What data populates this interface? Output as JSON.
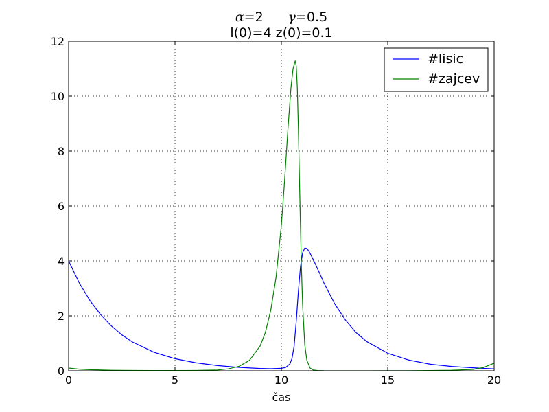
{
  "chart_data": {
    "type": "line",
    "title_line1": {
      "alpha_sym": "α",
      "alpha_eq": "=2",
      "gamma_sym": "γ",
      "gamma_eq": "=0.5"
    },
    "title_line2": "l(0)=4  z(0)=0.1",
    "xlabel": "čas",
    "ylabel": "",
    "xlim": [
      0,
      20
    ],
    "ylim": [
      0,
      12
    ],
    "xticks": [
      "0",
      "5",
      "10",
      "15",
      "20"
    ],
    "yticks": [
      "0",
      "2",
      "4",
      "6",
      "8",
      "10",
      "12"
    ],
    "grid": true,
    "legend_position": "top-right",
    "series": [
      {
        "name": "#lisic",
        "color": "#0000ff",
        "x": [
          0,
          0.5,
          1,
          1.5,
          2,
          2.5,
          3,
          4,
          5,
          6,
          7,
          8,
          9,
          9.5,
          10,
          10.2,
          10.4,
          10.5,
          10.6,
          10.7,
          10.8,
          10.9,
          11.0,
          11.1,
          11.2,
          11.3,
          11.5,
          11.8,
          12,
          12.5,
          13,
          13.5,
          14,
          15,
          16,
          17,
          18,
          19,
          20
        ],
        "y": [
          4.0,
          3.2,
          2.56,
          2.05,
          1.64,
          1.31,
          1.05,
          0.68,
          0.44,
          0.29,
          0.19,
          0.125,
          0.085,
          0.075,
          0.09,
          0.12,
          0.25,
          0.45,
          0.9,
          1.8,
          2.9,
          3.8,
          4.3,
          4.47,
          4.45,
          4.35,
          4.05,
          3.55,
          3.2,
          2.45,
          1.86,
          1.4,
          1.07,
          0.64,
          0.39,
          0.24,
          0.16,
          0.11,
          0.07
        ]
      },
      {
        "name": "#zajcev",
        "color": "#008000",
        "x": [
          0,
          0.5,
          1,
          2,
          3,
          4,
          5,
          6,
          7,
          7.5,
          8,
          8.5,
          9,
          9.25,
          9.5,
          9.75,
          10.0,
          10.15,
          10.3,
          10.45,
          10.55,
          10.65,
          10.7,
          10.75,
          10.8,
          10.85,
          10.9,
          10.95,
          11.0,
          11.1,
          11.2,
          11.35,
          11.5,
          11.7,
          12,
          13,
          14,
          15,
          16,
          17,
          18,
          19,
          19.5,
          20
        ],
        "y": [
          0.1,
          0.06,
          0.04,
          0.02,
          0.012,
          0.01,
          0.01,
          0.012,
          0.03,
          0.07,
          0.16,
          0.38,
          0.9,
          1.4,
          2.2,
          3.4,
          5.3,
          6.9,
          8.7,
          10.3,
          11.0,
          11.28,
          11.1,
          10.3,
          8.8,
          7.0,
          5.2,
          3.6,
          2.4,
          0.95,
          0.38,
          0.1,
          0.03,
          0.01,
          0.004,
          0.002,
          0.002,
          0.003,
          0.005,
          0.01,
          0.02,
          0.05,
          0.12,
          0.28
        ]
      }
    ]
  }
}
